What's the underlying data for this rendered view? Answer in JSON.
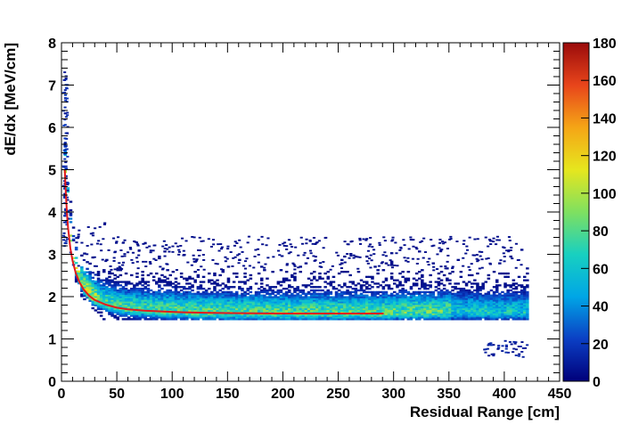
{
  "chart_data": {
    "type": "heatmap",
    "xlabel": "Residual Range [cm]",
    "ylabel": "dE/dx [MeV/cm]",
    "xlim": [
      0,
      450
    ],
    "ylim": [
      0,
      8
    ],
    "x_ticks": [
      "0",
      "50",
      "100",
      "150",
      "200",
      "250",
      "300",
      "350",
      "400",
      "450"
    ],
    "y_ticks": [
      "0",
      "1",
      "2",
      "3",
      "4",
      "5",
      "6",
      "7",
      "8"
    ],
    "colorbar": {
      "range": [
        0,
        180
      ],
      "ticks": [
        "0",
        "20",
        "40",
        "60",
        "80",
        "100",
        "120",
        "140",
        "160",
        "180"
      ],
      "colors": [
        "#00007a",
        "#0b3fc4",
        "#00a6e6",
        "#18d0c0",
        "#7fe060",
        "#e6e61e",
        "#f5a516",
        "#e8451b",
        "#9a0b0b"
      ]
    },
    "density_band": {
      "x_range": [
        2,
        420
      ],
      "center_y": 1.7,
      "upper_edge_y": 2.6,
      "lower_edge_y": 1.45,
      "sparse_cluster": {
        "x_range": [
          380,
          420
        ],
        "y_range": [
          0.55,
          0.95
        ]
      }
    },
    "fit_curve": {
      "color": "#e31a1c",
      "x": [
        3,
        4,
        5,
        6,
        8,
        10,
        13,
        16,
        20,
        25,
        30,
        40,
        50,
        60,
        75,
        90,
        110,
        130,
        150,
        175,
        200,
        225,
        250,
        275,
        291
      ],
      "y": [
        5.0,
        4.4,
        3.95,
        3.6,
        3.15,
        2.85,
        2.55,
        2.35,
        2.17,
        2.02,
        1.92,
        1.81,
        1.74,
        1.7,
        1.67,
        1.65,
        1.63,
        1.62,
        1.61,
        1.605,
        1.6,
        1.6,
        1.6,
        1.6,
        1.6
      ]
    }
  }
}
